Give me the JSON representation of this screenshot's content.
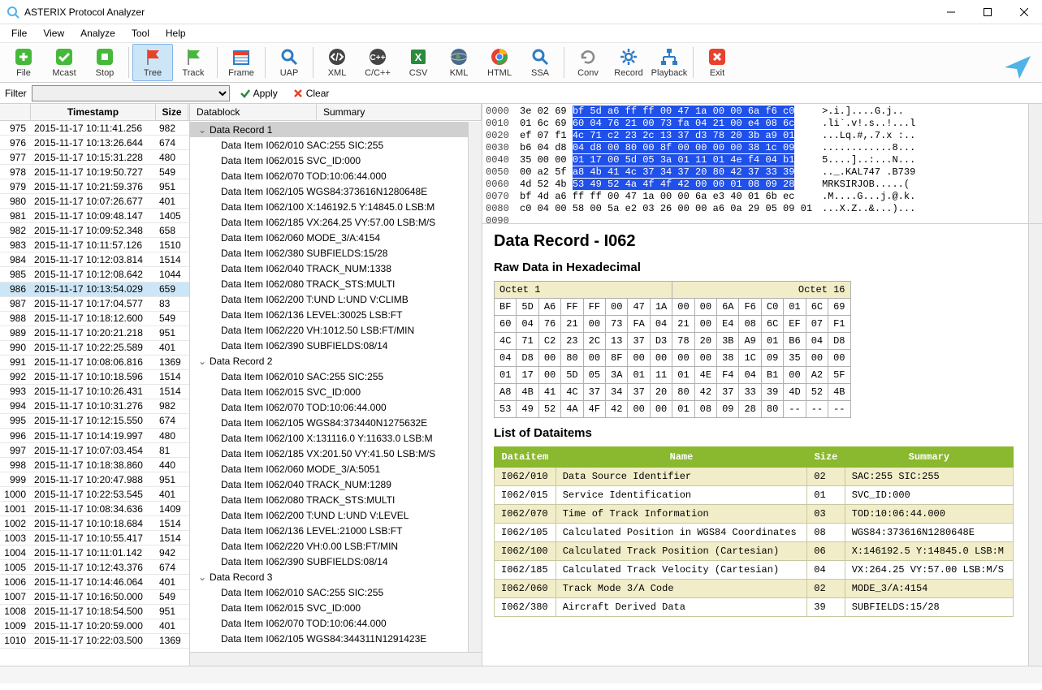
{
  "window": {
    "title": "ASTERIX Protocol Analyzer",
    "accent_color": "#4fb3e8"
  },
  "menu": [
    "File",
    "View",
    "Analyze",
    "Tool",
    "Help"
  ],
  "toolbar": [
    {
      "label": "File",
      "icon": "plus",
      "color": "#46b93a"
    },
    {
      "label": "Mcast",
      "icon": "check",
      "color": "#46b93a"
    },
    {
      "label": "Stop",
      "icon": "stop",
      "color": "#46b93a"
    },
    {
      "sep": true
    },
    {
      "label": "Tree",
      "icon": "flag",
      "color": "#e8412c",
      "active": true
    },
    {
      "label": "Track",
      "icon": "flag",
      "color": "#46b93a"
    },
    {
      "sep": true
    },
    {
      "label": "Frame",
      "icon": "calendar",
      "color": "#2e7cc3"
    },
    {
      "sep": true
    },
    {
      "label": "UAP",
      "icon": "search",
      "color": "#2e7cc3"
    },
    {
      "sep": true
    },
    {
      "label": "XML",
      "icon": "code",
      "color": "#444"
    },
    {
      "label": "C/C++",
      "icon": "cpp",
      "color": "#444"
    },
    {
      "label": "CSV",
      "icon": "excel",
      "color": "#2a8b3c"
    },
    {
      "label": "KML",
      "icon": "earth",
      "color": "#555"
    },
    {
      "label": "HTML",
      "icon": "chrome",
      "color": "#f0c419"
    },
    {
      "label": "SSA",
      "icon": "search",
      "color": "#2e7cc3"
    },
    {
      "sep": true
    },
    {
      "label": "Conv",
      "icon": "refresh",
      "color": "#888"
    },
    {
      "label": "Record",
      "icon": "gear",
      "color": "#2e7cc3"
    },
    {
      "label": "Playback",
      "icon": "network",
      "color": "#2e7cc3"
    },
    {
      "sep": true
    },
    {
      "label": "Exit",
      "icon": "x",
      "color": "#e8412c"
    }
  ],
  "filter": {
    "label": "Filter",
    "apply": "Apply",
    "clear": "Clear"
  },
  "grid": {
    "columns": [
      "",
      "Timestamp",
      "Size"
    ],
    "selected_idx": 11,
    "rows": [
      [
        "975",
        "2015-11-17 10:11:41.256",
        "982"
      ],
      [
        "976",
        "2015-11-17 10:13:26.644",
        "674"
      ],
      [
        "977",
        "2015-11-17 10:15:31.228",
        "480"
      ],
      [
        "978",
        "2015-11-17 10:19:50.727",
        "549"
      ],
      [
        "979",
        "2015-11-17 10:21:59.376",
        "951"
      ],
      [
        "980",
        "2015-11-17 10:07:26.677",
        "401"
      ],
      [
        "981",
        "2015-11-17 10:09:48.147",
        "1405"
      ],
      [
        "982",
        "2015-11-17 10:09:52.348",
        "658"
      ],
      [
        "983",
        "2015-11-17 10:11:57.126",
        "1510"
      ],
      [
        "984",
        "2015-11-17 10:12:03.814",
        "1514"
      ],
      [
        "985",
        "2015-11-17 10:12:08.642",
        "1044"
      ],
      [
        "986",
        "2015-11-17 10:13:54.029",
        "659"
      ],
      [
        "987",
        "2015-11-17 10:17:04.577",
        "83"
      ],
      [
        "988",
        "2015-11-17 10:18:12.600",
        "549"
      ],
      [
        "989",
        "2015-11-17 10:20:21.218",
        "951"
      ],
      [
        "990",
        "2015-11-17 10:22:25.589",
        "401"
      ],
      [
        "991",
        "2015-11-17 10:08:06.816",
        "1369"
      ],
      [
        "992",
        "2015-11-17 10:10:18.596",
        "1514"
      ],
      [
        "993",
        "2015-11-17 10:10:26.431",
        "1514"
      ],
      [
        "994",
        "2015-11-17 10:10:31.276",
        "982"
      ],
      [
        "995",
        "2015-11-17 10:12:15.550",
        "674"
      ],
      [
        "996",
        "2015-11-17 10:14:19.997",
        "480"
      ],
      [
        "997",
        "2015-11-17 10:07:03.454",
        "81"
      ],
      [
        "998",
        "2015-11-17 10:18:38.860",
        "440"
      ],
      [
        "999",
        "2015-11-17 10:20:47.988",
        "951"
      ],
      [
        "1000",
        "2015-11-17 10:22:53.545",
        "401"
      ],
      [
        "1001",
        "2015-11-17 10:08:34.636",
        "1409"
      ],
      [
        "1002",
        "2015-11-17 10:10:18.684",
        "1514"
      ],
      [
        "1003",
        "2015-11-17 10:10:55.417",
        "1514"
      ],
      [
        "1004",
        "2015-11-17 10:11:01.142",
        "942"
      ],
      [
        "1005",
        "2015-11-17 10:12:43.376",
        "674"
      ],
      [
        "1006",
        "2015-11-17 10:14:46.064",
        "401"
      ],
      [
        "1007",
        "2015-11-17 10:16:50.000",
        "549"
      ],
      [
        "1008",
        "2015-11-17 10:18:54.500",
        "951"
      ],
      [
        "1009",
        "2015-11-17 10:20:59.000",
        "401"
      ],
      [
        "1010",
        "2015-11-17 10:22:03.500",
        "1369"
      ]
    ]
  },
  "tree": {
    "columns": [
      "Datablock",
      "Summary"
    ],
    "nodes": [
      {
        "lvl": 1,
        "open": true,
        "label": "Data Record 1",
        "sel": true
      },
      {
        "lvl": 2,
        "label": "Data Item I062/010",
        "sum": "SAC:255 SIC:255"
      },
      {
        "lvl": 2,
        "label": "Data Item I062/015",
        "sum": "SVC_ID:000"
      },
      {
        "lvl": 2,
        "label": "Data Item I062/070",
        "sum": "TOD:10:06:44.000"
      },
      {
        "lvl": 2,
        "label": "Data Item I062/105",
        "sum": "WGS84:373616N1280648E"
      },
      {
        "lvl": 2,
        "label": "Data Item I062/100",
        "sum": "X:146192.5 Y:14845.0 LSB:M"
      },
      {
        "lvl": 2,
        "label": "Data Item I062/185",
        "sum": "VX:264.25 VY:57.00 LSB:M/S"
      },
      {
        "lvl": 2,
        "label": "Data Item I062/060",
        "sum": "MODE_3/A:4154"
      },
      {
        "lvl": 2,
        "label": "Data Item I062/380",
        "sum": "SUBFIELDS:15/28"
      },
      {
        "lvl": 2,
        "label": "Data Item I062/040",
        "sum": "TRACK_NUM:1338"
      },
      {
        "lvl": 2,
        "label": "Data Item I062/080",
        "sum": "TRACK_STS:MULTI"
      },
      {
        "lvl": 2,
        "label": "Data Item I062/200",
        "sum": "T:UND L:UND V:CLIMB"
      },
      {
        "lvl": 2,
        "label": "Data Item I062/136",
        "sum": "LEVEL:30025 LSB:FT"
      },
      {
        "lvl": 2,
        "label": "Data Item I062/220",
        "sum": "VH:1012.50 LSB:FT/MIN"
      },
      {
        "lvl": 2,
        "label": "Data Item I062/390",
        "sum": "SUBFIELDS:08/14"
      },
      {
        "lvl": 1,
        "open": true,
        "label": "Data Record 2"
      },
      {
        "lvl": 2,
        "label": "Data Item I062/010",
        "sum": "SAC:255 SIC:255"
      },
      {
        "lvl": 2,
        "label": "Data Item I062/015",
        "sum": "SVC_ID:000"
      },
      {
        "lvl": 2,
        "label": "Data Item I062/070",
        "sum": "TOD:10:06:44.000"
      },
      {
        "lvl": 2,
        "label": "Data Item I062/105",
        "sum": "WGS84:373440N1275632E"
      },
      {
        "lvl": 2,
        "label": "Data Item I062/100",
        "sum": "X:131116.0 Y:11633.0 LSB:M"
      },
      {
        "lvl": 2,
        "label": "Data Item I062/185",
        "sum": "VX:201.50 VY:41.50 LSB:M/S"
      },
      {
        "lvl": 2,
        "label": "Data Item I062/060",
        "sum": "MODE_3/A:5051"
      },
      {
        "lvl": 2,
        "label": "Data Item I062/040",
        "sum": "TRACK_NUM:1289"
      },
      {
        "lvl": 2,
        "label": "Data Item I062/080",
        "sum": "TRACK_STS:MULTI"
      },
      {
        "lvl": 2,
        "label": "Data Item I062/200",
        "sum": "T:UND L:UND V:LEVEL"
      },
      {
        "lvl": 2,
        "label": "Data Item I062/136",
        "sum": "LEVEL:21000 LSB:FT"
      },
      {
        "lvl": 2,
        "label": "Data Item I062/220",
        "sum": "VH:0.00 LSB:FT/MIN"
      },
      {
        "lvl": 2,
        "label": "Data Item I062/390",
        "sum": "SUBFIELDS:08/14"
      },
      {
        "lvl": 1,
        "open": true,
        "label": "Data Record 3"
      },
      {
        "lvl": 2,
        "label": "Data Item I062/010",
        "sum": "SAC:255 SIC:255"
      },
      {
        "lvl": 2,
        "label": "Data Item I062/015",
        "sum": "SVC_ID:000"
      },
      {
        "lvl": 2,
        "label": "Data Item I062/070",
        "sum": "TOD:10:06:44.000"
      },
      {
        "lvl": 2,
        "label": "Data Item I062/105",
        "sum": "WGS84:344311N1291423E"
      }
    ]
  },
  "hex": {
    "offsets": [
      "0000",
      "0010",
      "0020",
      "0030",
      "0040",
      "0050",
      "0060",
      "0070",
      "0080",
      "0090"
    ],
    "bytes": [
      [
        [
          "3e",
          "02",
          "69"
        ],
        [
          "bf",
          "5d",
          "a6",
          "ff",
          "ff",
          "00",
          "47",
          "1a",
          "00",
          "00",
          "6a",
          "f6",
          "c0"
        ]
      ],
      [
        [
          "01",
          "6c",
          "69"
        ],
        [
          "60",
          "04",
          "76",
          "21",
          "00",
          "73",
          "fa",
          "04",
          "21",
          "00",
          "e4",
          "08",
          "6c"
        ]
      ],
      [
        [
          "ef",
          "07",
          "f1"
        ],
        [
          "4c",
          "71",
          "c2",
          "23",
          "2c",
          "13",
          "37",
          "d3",
          "78",
          "20",
          "3b",
          "a9",
          "01"
        ]
      ],
      [
        [
          "b6",
          "04",
          "d8"
        ],
        [
          "04",
          "d8",
          "00",
          "80",
          "00",
          "8f",
          "00",
          "00",
          "00",
          "00",
          "38",
          "1c",
          "09"
        ]
      ],
      [
        [
          "35",
          "00",
          "00"
        ],
        [
          "01",
          "17",
          "00",
          "5d",
          "05",
          "3a",
          "01",
          "11",
          "01",
          "4e",
          "f4",
          "04",
          "b1"
        ]
      ],
      [
        [
          "00",
          "a2",
          "5f"
        ],
        [
          "a8",
          "4b",
          "41",
          "4c",
          "37",
          "34",
          "37",
          "20",
          "80",
          "42",
          "37",
          "33",
          "39"
        ]
      ],
      [
        [
          "4d",
          "52",
          "4b"
        ],
        [
          "53",
          "49",
          "52",
          "4a",
          "4f",
          "4f",
          "42",
          "00",
          "00",
          "01",
          "08",
          "09",
          "28"
        ]
      ],
      [
        [
          "bf",
          "4d",
          "a6"
        ],
        [
          "ff",
          "ff",
          "00",
          "47",
          "1a",
          "00",
          "00",
          "6a",
          "e3",
          "40",
          "01",
          "6b",
          "ec"
        ]
      ],
      [
        [
          "c0",
          "04",
          "00"
        ],
        [
          "58",
          "00",
          "5a",
          "e2",
          "03",
          "26",
          "00",
          "00",
          "a6",
          "0a",
          "29",
          "05",
          "09",
          "01"
        ]
      ]
    ],
    "ascii": [
      ">.i.]....G.j..",
      ".li`.v!.s..!...l",
      "...Lq.#,.7.x :..",
      "............8...",
      "5....]..:...N...",
      ".._.KAL747 .B739",
      "MRKSIRJOB.....(",
      ".M....G...j.@.k.",
      "...X.Z..&...)..."
    ]
  },
  "detail": {
    "title": "Data Record - I062",
    "raw_heading": "Raw Data in Hexadecimal",
    "octet_head_left": "Octet 1",
    "octet_head_right": "Octet 16",
    "octets": [
      [
        "BF",
        "5D",
        "A6",
        "FF",
        "FF",
        "00",
        "47",
        "1A",
        "00",
        "00",
        "6A",
        "F6",
        "C0",
        "01",
        "6C",
        "69"
      ],
      [
        "60",
        "04",
        "76",
        "21",
        "00",
        "73",
        "FA",
        "04",
        "21",
        "00",
        "E4",
        "08",
        "6C",
        "EF",
        "07",
        "F1"
      ],
      [
        "4C",
        "71",
        "C2",
        "23",
        "2C",
        "13",
        "37",
        "D3",
        "78",
        "20",
        "3B",
        "A9",
        "01",
        "B6",
        "04",
        "D8"
      ],
      [
        "04",
        "D8",
        "00",
        "80",
        "00",
        "8F",
        "00",
        "00",
        "00",
        "00",
        "38",
        "1C",
        "09",
        "35",
        "00",
        "00"
      ],
      [
        "01",
        "17",
        "00",
        "5D",
        "05",
        "3A",
        "01",
        "11",
        "01",
        "4E",
        "F4",
        "04",
        "B1",
        "00",
        "A2",
        "5F"
      ],
      [
        "A8",
        "4B",
        "41",
        "4C",
        "37",
        "34",
        "37",
        "20",
        "80",
        "42",
        "37",
        "33",
        "39",
        "4D",
        "52",
        "4B"
      ],
      [
        "53",
        "49",
        "52",
        "4A",
        "4F",
        "42",
        "00",
        "00",
        "01",
        "08",
        "09",
        "28",
        "80",
        "--",
        "--",
        "--"
      ]
    ],
    "list_heading": "List of Dataitems",
    "di_columns": [
      "Dataitem",
      "Name",
      "Size",
      "Summary"
    ],
    "di_rows": [
      [
        "I062/010",
        "Data Source Identifier",
        "02",
        "SAC:255 SIC:255"
      ],
      [
        "I062/015",
        "Service Identification",
        "01",
        "SVC_ID:000"
      ],
      [
        "I062/070",
        "Time of Track Information",
        "03",
        "TOD:10:06:44.000"
      ],
      [
        "I062/105",
        "Calculated Position in WGS84 Coordinates",
        "08",
        "WGS84:373616N1280648E"
      ],
      [
        "I062/100",
        "Calculated Track Position (Cartesian)",
        "06",
        "X:146192.5 Y:14845.0 LSB:M"
      ],
      [
        "I062/185",
        "Calculated Track Velocity (Cartesian)",
        "04",
        "VX:264.25 VY:57.00 LSB:M/S"
      ],
      [
        "I062/060",
        "Track Mode 3/A Code",
        "02",
        "MODE_3/A:4154"
      ],
      [
        "I062/380",
        "Aircraft Derived Data",
        "39",
        "SUBFIELDS:15/28"
      ]
    ]
  }
}
